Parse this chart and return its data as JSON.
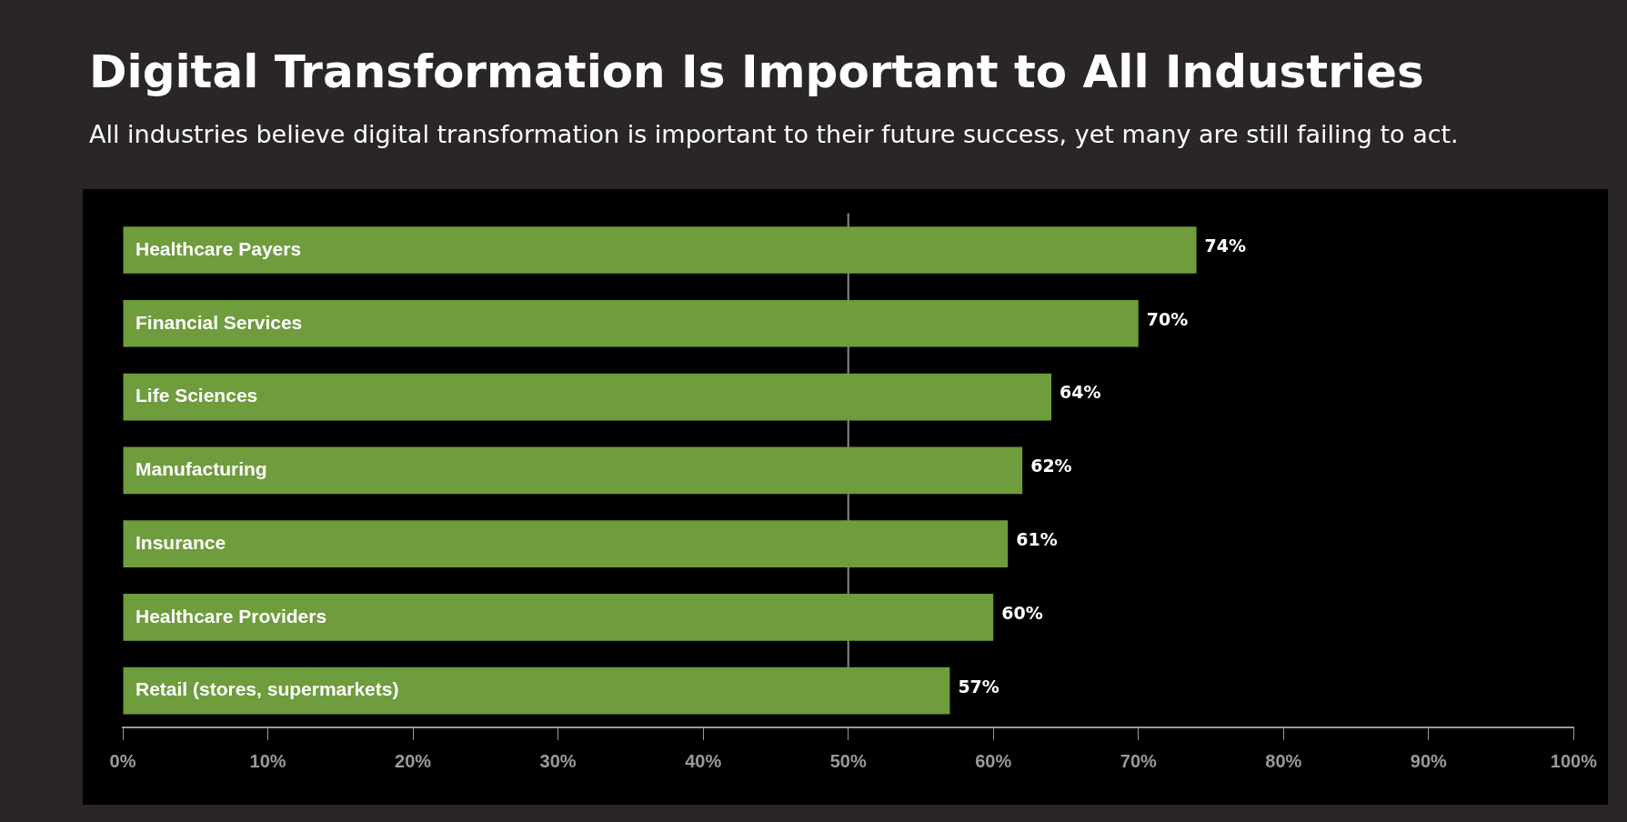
{
  "chart_data": {
    "type": "bar",
    "orientation": "horizontal",
    "title": "Digital Transformation Is Important to All Industries",
    "subtitle": "All industries believe digital transformation is important to their future success, yet many are still failing to act.",
    "categories": [
      "Healthcare Payers",
      "Financial Services",
      "Life Sciences",
      "Manufacturing",
      "Insurance",
      "Healthcare Providers",
      "Retail (stores, supermarkets)"
    ],
    "values": [
      74,
      70,
      64,
      62,
      61,
      60,
      57
    ],
    "value_labels": [
      "74%",
      "70%",
      "64%",
      "62%",
      "61%",
      "60%",
      "57%"
    ],
    "color": "#6f9c3c",
    "xlim": [
      0,
      100
    ],
    "xticks": [
      {
        "value": 0,
        "label": "0%"
      },
      {
        "value": 10,
        "label": "10%"
      },
      {
        "value": 20,
        "label": "20%"
      },
      {
        "value": 30,
        "label": "30%"
      },
      {
        "value": 40,
        "label": "40%"
      },
      {
        "value": 50,
        "label": "50%"
      },
      {
        "value": 60,
        "label": "60%"
      },
      {
        "value": 70,
        "label": "70%"
      },
      {
        "value": 80,
        "label": "80%"
      },
      {
        "value": 90,
        "label": "90%"
      },
      {
        "value": 100,
        "label": "100%"
      }
    ],
    "ref_lines": [
      {
        "axis": "x",
        "value": 50,
        "color": "#8a8a8a"
      }
    ],
    "grid": false,
    "legend": false
  }
}
